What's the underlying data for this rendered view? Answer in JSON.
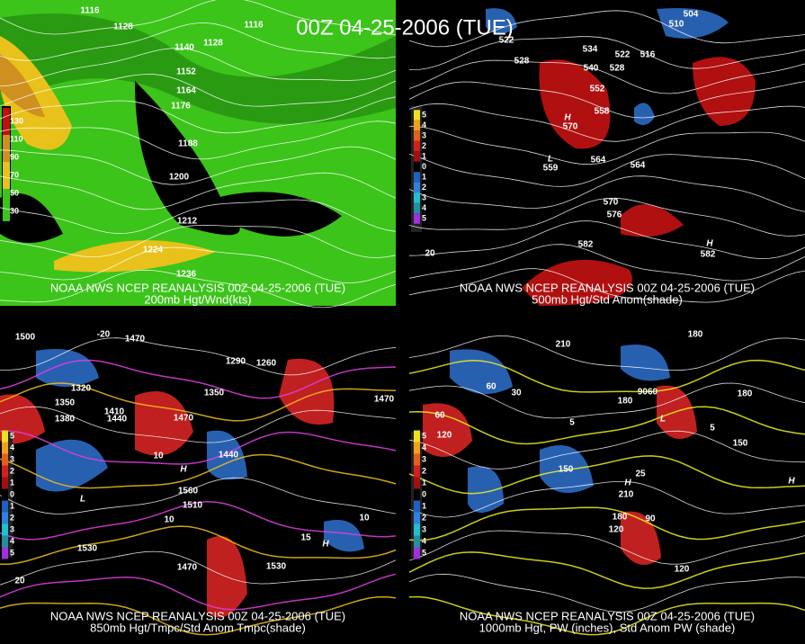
{
  "title": "00Z 04-25-2006 (TUE)",
  "panels": [
    {
      "caption": [
        "NOAA NWS NCEP REANALYSIS 00Z 04-25-2006 (TUE)",
        "200mb Hgt/Wnd(kts)"
      ],
      "colorbar": [
        130,
        110,
        90,
        70,
        50,
        30
      ],
      "labels": [
        1116,
        1128,
        1116,
        1140,
        1128,
        1152,
        1164,
        1176,
        1188,
        1200,
        1212,
        1224,
        1236
      ]
    },
    {
      "caption": [
        "NOAA NWS NCEP REANALYSIS 00Z 04-25-2006 (TUE)",
        "500mb Hgt/Std Anom(shade)"
      ],
      "colorbar": [
        5,
        4,
        3,
        2,
        1,
        0,
        1,
        2,
        3,
        4,
        5
      ],
      "labels": [
        522,
        528,
        504,
        510,
        534,
        540,
        528,
        522,
        516,
        552,
        558,
        564,
        564,
        570,
        576,
        582,
        20,
        "H",
        570,
        "L",
        559,
        "H",
        582
      ]
    },
    {
      "caption": [
        "NOAA NWS NCEP REANALYSIS 00Z 04-25-2006 (TUE)",
        "850mb Hgt/Tmpc/Std Anom Tmpc(shade)"
      ],
      "colorbar": [
        5,
        4,
        3,
        2,
        1,
        0,
        1,
        2,
        3,
        4,
        5
      ],
      "labels": [
        1500,
        1470,
        1290,
        1260,
        1380,
        1350,
        1320,
        1410,
        1440,
        1470,
        1350,
        1440,
        1560,
        1510,
        1530,
        1470,
        1530,
        1470,
        20,
        -20,
        10,
        10,
        15,
        10,
        "H",
        "L",
        "H"
      ]
    },
    {
      "caption": [
        "NOAA NWS NCEP REANALYSIS 00Z 04-25-2006 (TUE)",
        "1000mb Hgt, PW (inches), Std Anom PW (shade)"
      ],
      "colorbar": [
        5,
        4,
        3,
        2,
        1,
        0,
        1,
        2,
        3,
        4,
        5
      ],
      "labels": [
        210,
        180,
        60,
        60,
        120,
        30,
        180,
        9060,
        180,
        150,
        150,
        210,
        180,
        120,
        90,
        120,
        5,
        25,
        5,
        "H",
        "L",
        "H"
      ]
    }
  ]
}
